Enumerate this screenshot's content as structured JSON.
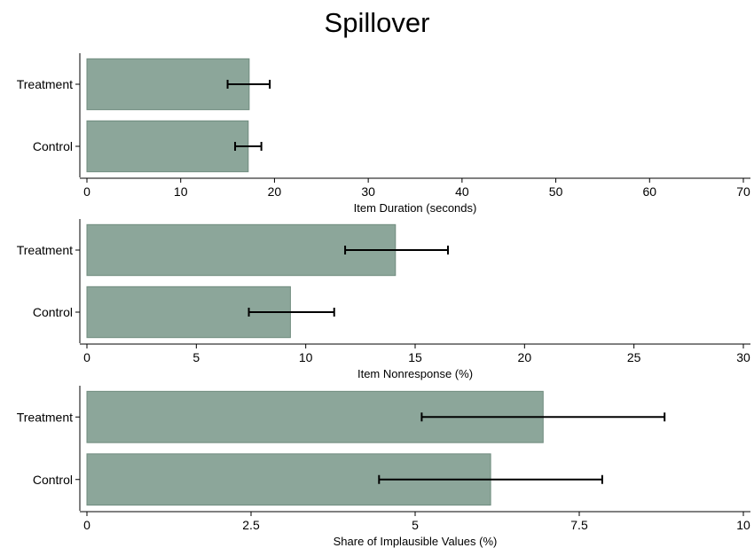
{
  "title": "Spillover",
  "colors": {
    "bar_fill": "#8ca69a",
    "bar_stroke": "#6f8b7e",
    "axis": "#000000",
    "error_bar": "#000000"
  },
  "chart_data": [
    {
      "type": "bar",
      "orientation": "horizontal",
      "categories": [
        "Treatment",
        "Control"
      ],
      "values": [
        17.3,
        17.2
      ],
      "error_low": [
        15.0,
        15.8
      ],
      "error_high": [
        19.5,
        18.6
      ],
      "xlabel": "Item Duration (seconds)",
      "xlim": [
        0,
        70
      ],
      "xticks": [
        0,
        10,
        20,
        30,
        40,
        50,
        60,
        70
      ],
      "xtick_labels": [
        "0",
        "10",
        "20",
        "30",
        "40",
        "50",
        "60",
        "70"
      ]
    },
    {
      "type": "bar",
      "orientation": "horizontal",
      "categories": [
        "Treatment",
        "Control"
      ],
      "values": [
        14.1,
        9.3
      ],
      "error_low": [
        11.8,
        7.4
      ],
      "error_high": [
        16.5,
        11.3
      ],
      "xlabel": "Item Nonresponse (%)",
      "xlim": [
        0,
        30
      ],
      "xticks": [
        0,
        5,
        10,
        15,
        20,
        25,
        30
      ],
      "xtick_labels": [
        "0",
        "5",
        "10",
        "15",
        "20",
        "25",
        "30"
      ]
    },
    {
      "type": "bar",
      "orientation": "horizontal",
      "categories": [
        "Treatment",
        "Control"
      ],
      "values": [
        6.95,
        6.15
      ],
      "error_low": [
        5.1,
        4.45
      ],
      "error_high": [
        8.8,
        7.85
      ],
      "xlabel": "Share of Implausible Values (%)",
      "xlim": [
        0,
        10
      ],
      "xticks": [
        0,
        2.5,
        5,
        7.5,
        10
      ],
      "xtick_labels": [
        "0",
        "2.5",
        "5",
        "7.5",
        "10"
      ]
    }
  ]
}
